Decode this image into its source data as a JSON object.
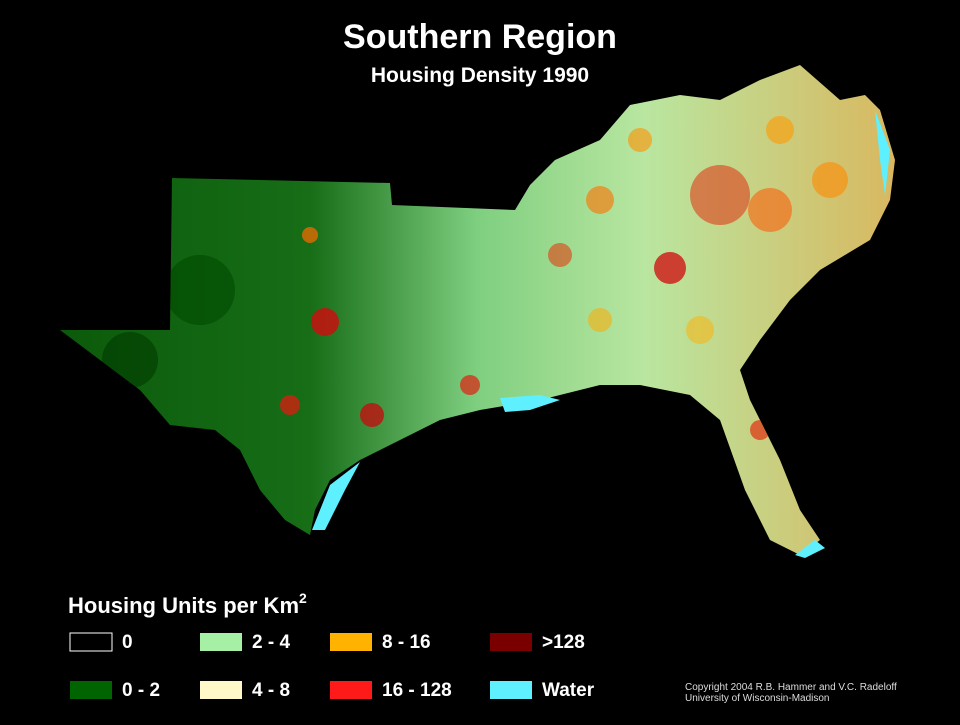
{
  "header": {
    "title": "Southern Region",
    "subtitle": "Housing Density 1990"
  },
  "legend": {
    "title": "Housing Units per Km",
    "title_superscript": "2",
    "items": [
      {
        "label": "0",
        "color": "#000000"
      },
      {
        "label": "2 - 4",
        "color": "#a6f0a6"
      },
      {
        "label": "8 - 16",
        "color": "#ffb300"
      },
      {
        "label": ">128",
        "color": "#7a0000"
      },
      {
        "label": "0 - 2",
        "color": "#006400"
      },
      {
        "label": "4 - 8",
        "color": "#fff8c8"
      },
      {
        "label": "16 - 128",
        "color": "#ff1a1a"
      },
      {
        "label": "Water",
        "color": "#5ff0ff"
      }
    ]
  },
  "footer": {
    "copyright": [
      "Copyright 2004 R.B. Hammer and V.C. Radeloff",
      "University of Wisconsin-Madison"
    ]
  }
}
